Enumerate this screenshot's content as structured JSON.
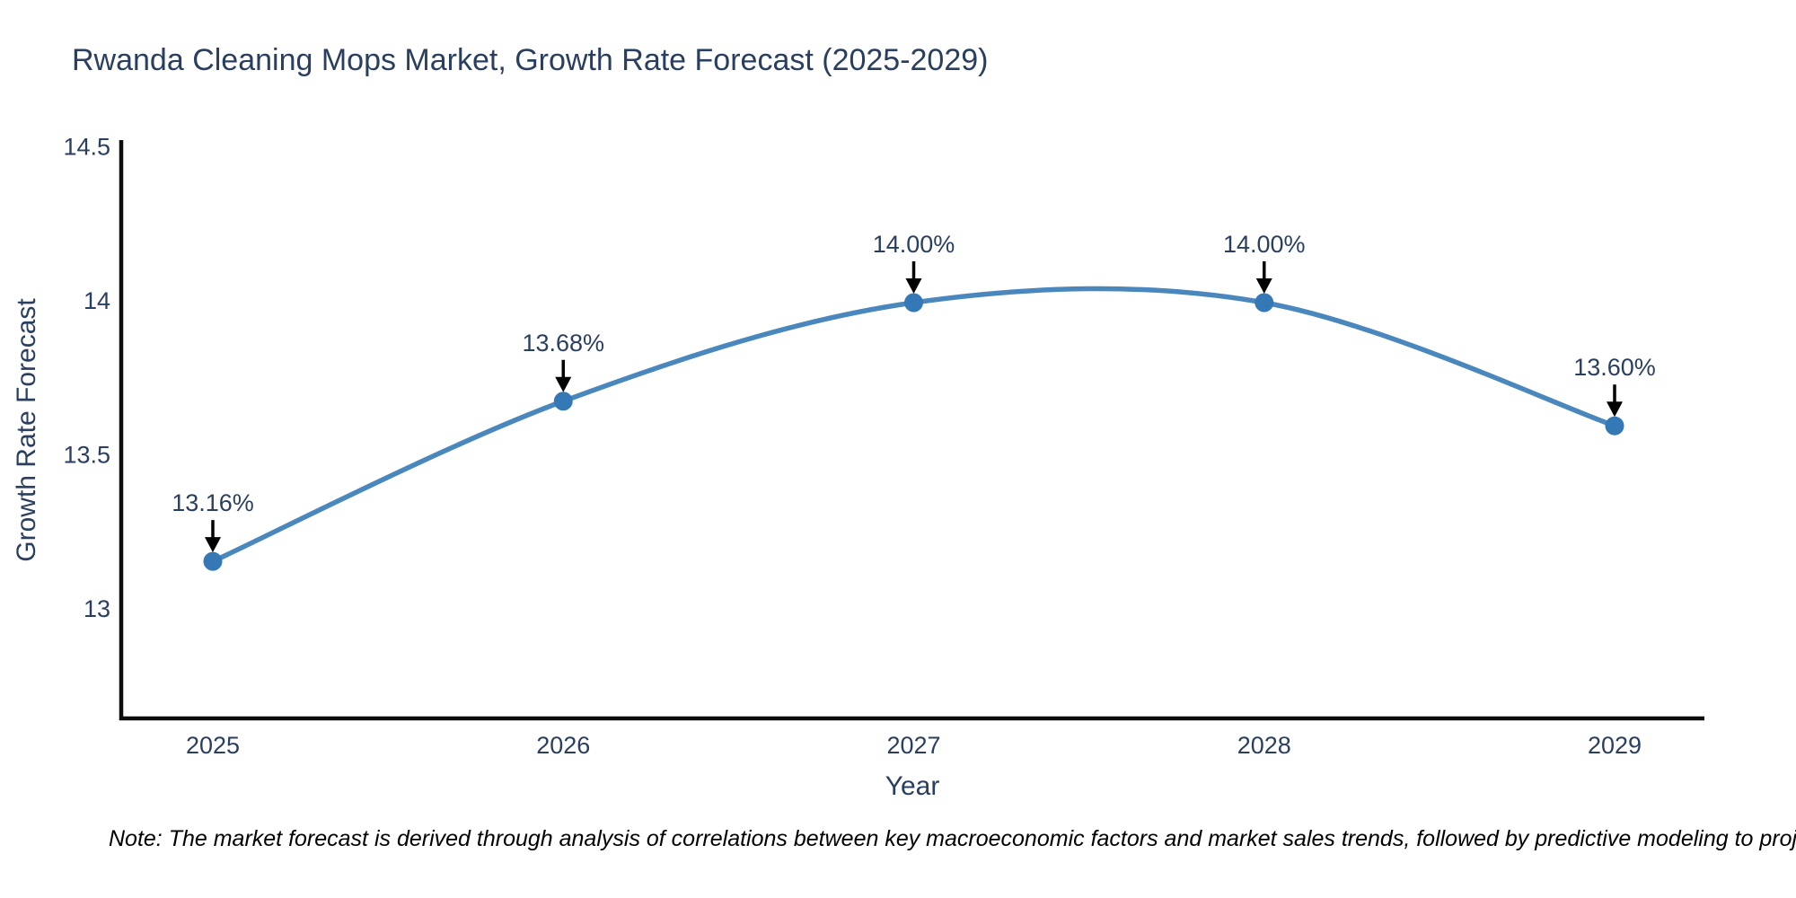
{
  "chart_data": {
    "type": "line",
    "title": "Rwanda Cleaning Mops Market, Growth Rate Forecast (2025-2029)",
    "xlabel": "Year",
    "ylabel": "Growth Rate Forecast",
    "categories": [
      "2025",
      "2026",
      "2027",
      "2028",
      "2029"
    ],
    "series": [
      {
        "name": "Growth Rate Forecast",
        "values": [
          13.16,
          13.68,
          14.0,
          14.0,
          13.6
        ]
      }
    ],
    "point_labels": [
      "13.16%",
      "13.68%",
      "14.00%",
      "14.00%",
      "13.60%"
    ],
    "y_ticks": [
      13,
      13.5,
      14,
      14.5
    ],
    "y_tick_labels": [
      "13",
      "13.5",
      "14",
      "14.5"
    ],
    "ylim": [
      12.65,
      14.52
    ],
    "grid": false,
    "legend_position": "none",
    "line_shape": "spline",
    "colors": {
      "line": "#4a87bd",
      "marker": "#3578b6",
      "axis": "#0d0d0d",
      "text": "#2a3f5f",
      "annotation_arrow": "#000000",
      "note_text": "#000000"
    }
  },
  "note": {
    "text": "Note: The market forecast is derived through analysis of correlations between key macroeconomic factors and market sales trends, followed by predictive modeling to project future sal"
  }
}
